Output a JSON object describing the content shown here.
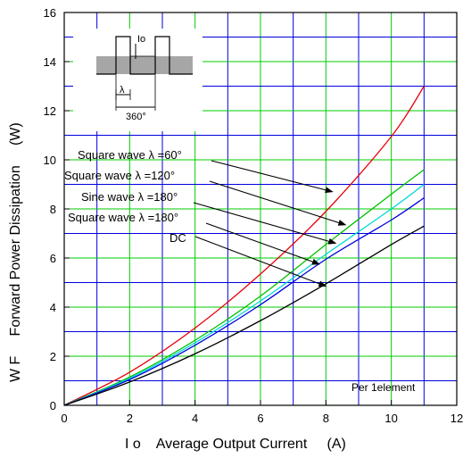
{
  "chart_data": {
    "type": "line",
    "xlabel": "I o    Average Output Current     (A)",
    "ylabel": "W F     Forward Power Dissipation     (W)",
    "xlim": [
      0,
      12
    ],
    "ylim": [
      0,
      16
    ],
    "xticks": [
      "0",
      "2",
      "4",
      "6",
      "8",
      "10",
      "12"
    ],
    "yticks": [
      "0",
      "2",
      "4",
      "6",
      "8",
      "10",
      "12",
      "14",
      "16"
    ],
    "grid": true,
    "note": "Per 1element",
    "series": [
      {
        "name": "Square wave λ =60°",
        "color": "#e8000b",
        "x": [
          0,
          2,
          4,
          6,
          8,
          10,
          11
        ],
        "y": [
          0,
          1.35,
          3.15,
          5.35,
          7.9,
          10.95,
          13.0
        ]
      },
      {
        "name": "Square wave λ =120°",
        "color": "#00c000",
        "x": [
          0,
          2,
          4,
          6,
          8,
          10,
          11
        ],
        "y": [
          0,
          1.15,
          2.65,
          4.45,
          6.55,
          8.6,
          9.6
        ]
      },
      {
        "name": "Sine wave λ =180°",
        "color": "#00d8d8",
        "x": [
          0,
          2,
          4,
          6,
          8,
          10,
          11
        ],
        "y": [
          0,
          1.1,
          2.55,
          4.25,
          6.15,
          8.0,
          9.0
        ]
      },
      {
        "name": "Square wave λ =180°",
        "color": "#0000e0",
        "x": [
          0,
          2,
          4,
          6,
          8,
          10,
          11
        ],
        "y": [
          0,
          1.05,
          2.45,
          4.1,
          5.95,
          7.55,
          8.45
        ]
      },
      {
        "name": "DC",
        "color": "#000000",
        "x": [
          0,
          2,
          4,
          6,
          8,
          10,
          11
        ],
        "y": [
          0,
          0.95,
          2.1,
          3.45,
          4.95,
          6.55,
          7.3
        ]
      }
    ],
    "annotations": [
      {
        "text": "Square wave λ =60°",
        "points_to": [
          8.2,
          8.7
        ]
      },
      {
        "text": "Square wave λ =120°",
        "points_to": [
          8.6,
          7.35
        ]
      },
      {
        "text": "Sine wave λ =180°",
        "points_to": [
          8.3,
          6.6
        ]
      },
      {
        "text": "Square wave λ =180°",
        "points_to": [
          7.8,
          5.75
        ]
      },
      {
        "text": "DC",
        "points_to": [
          8.0,
          4.85
        ]
      }
    ],
    "inset": {
      "labels": [
        "Io",
        "λ",
        "360°"
      ]
    }
  }
}
